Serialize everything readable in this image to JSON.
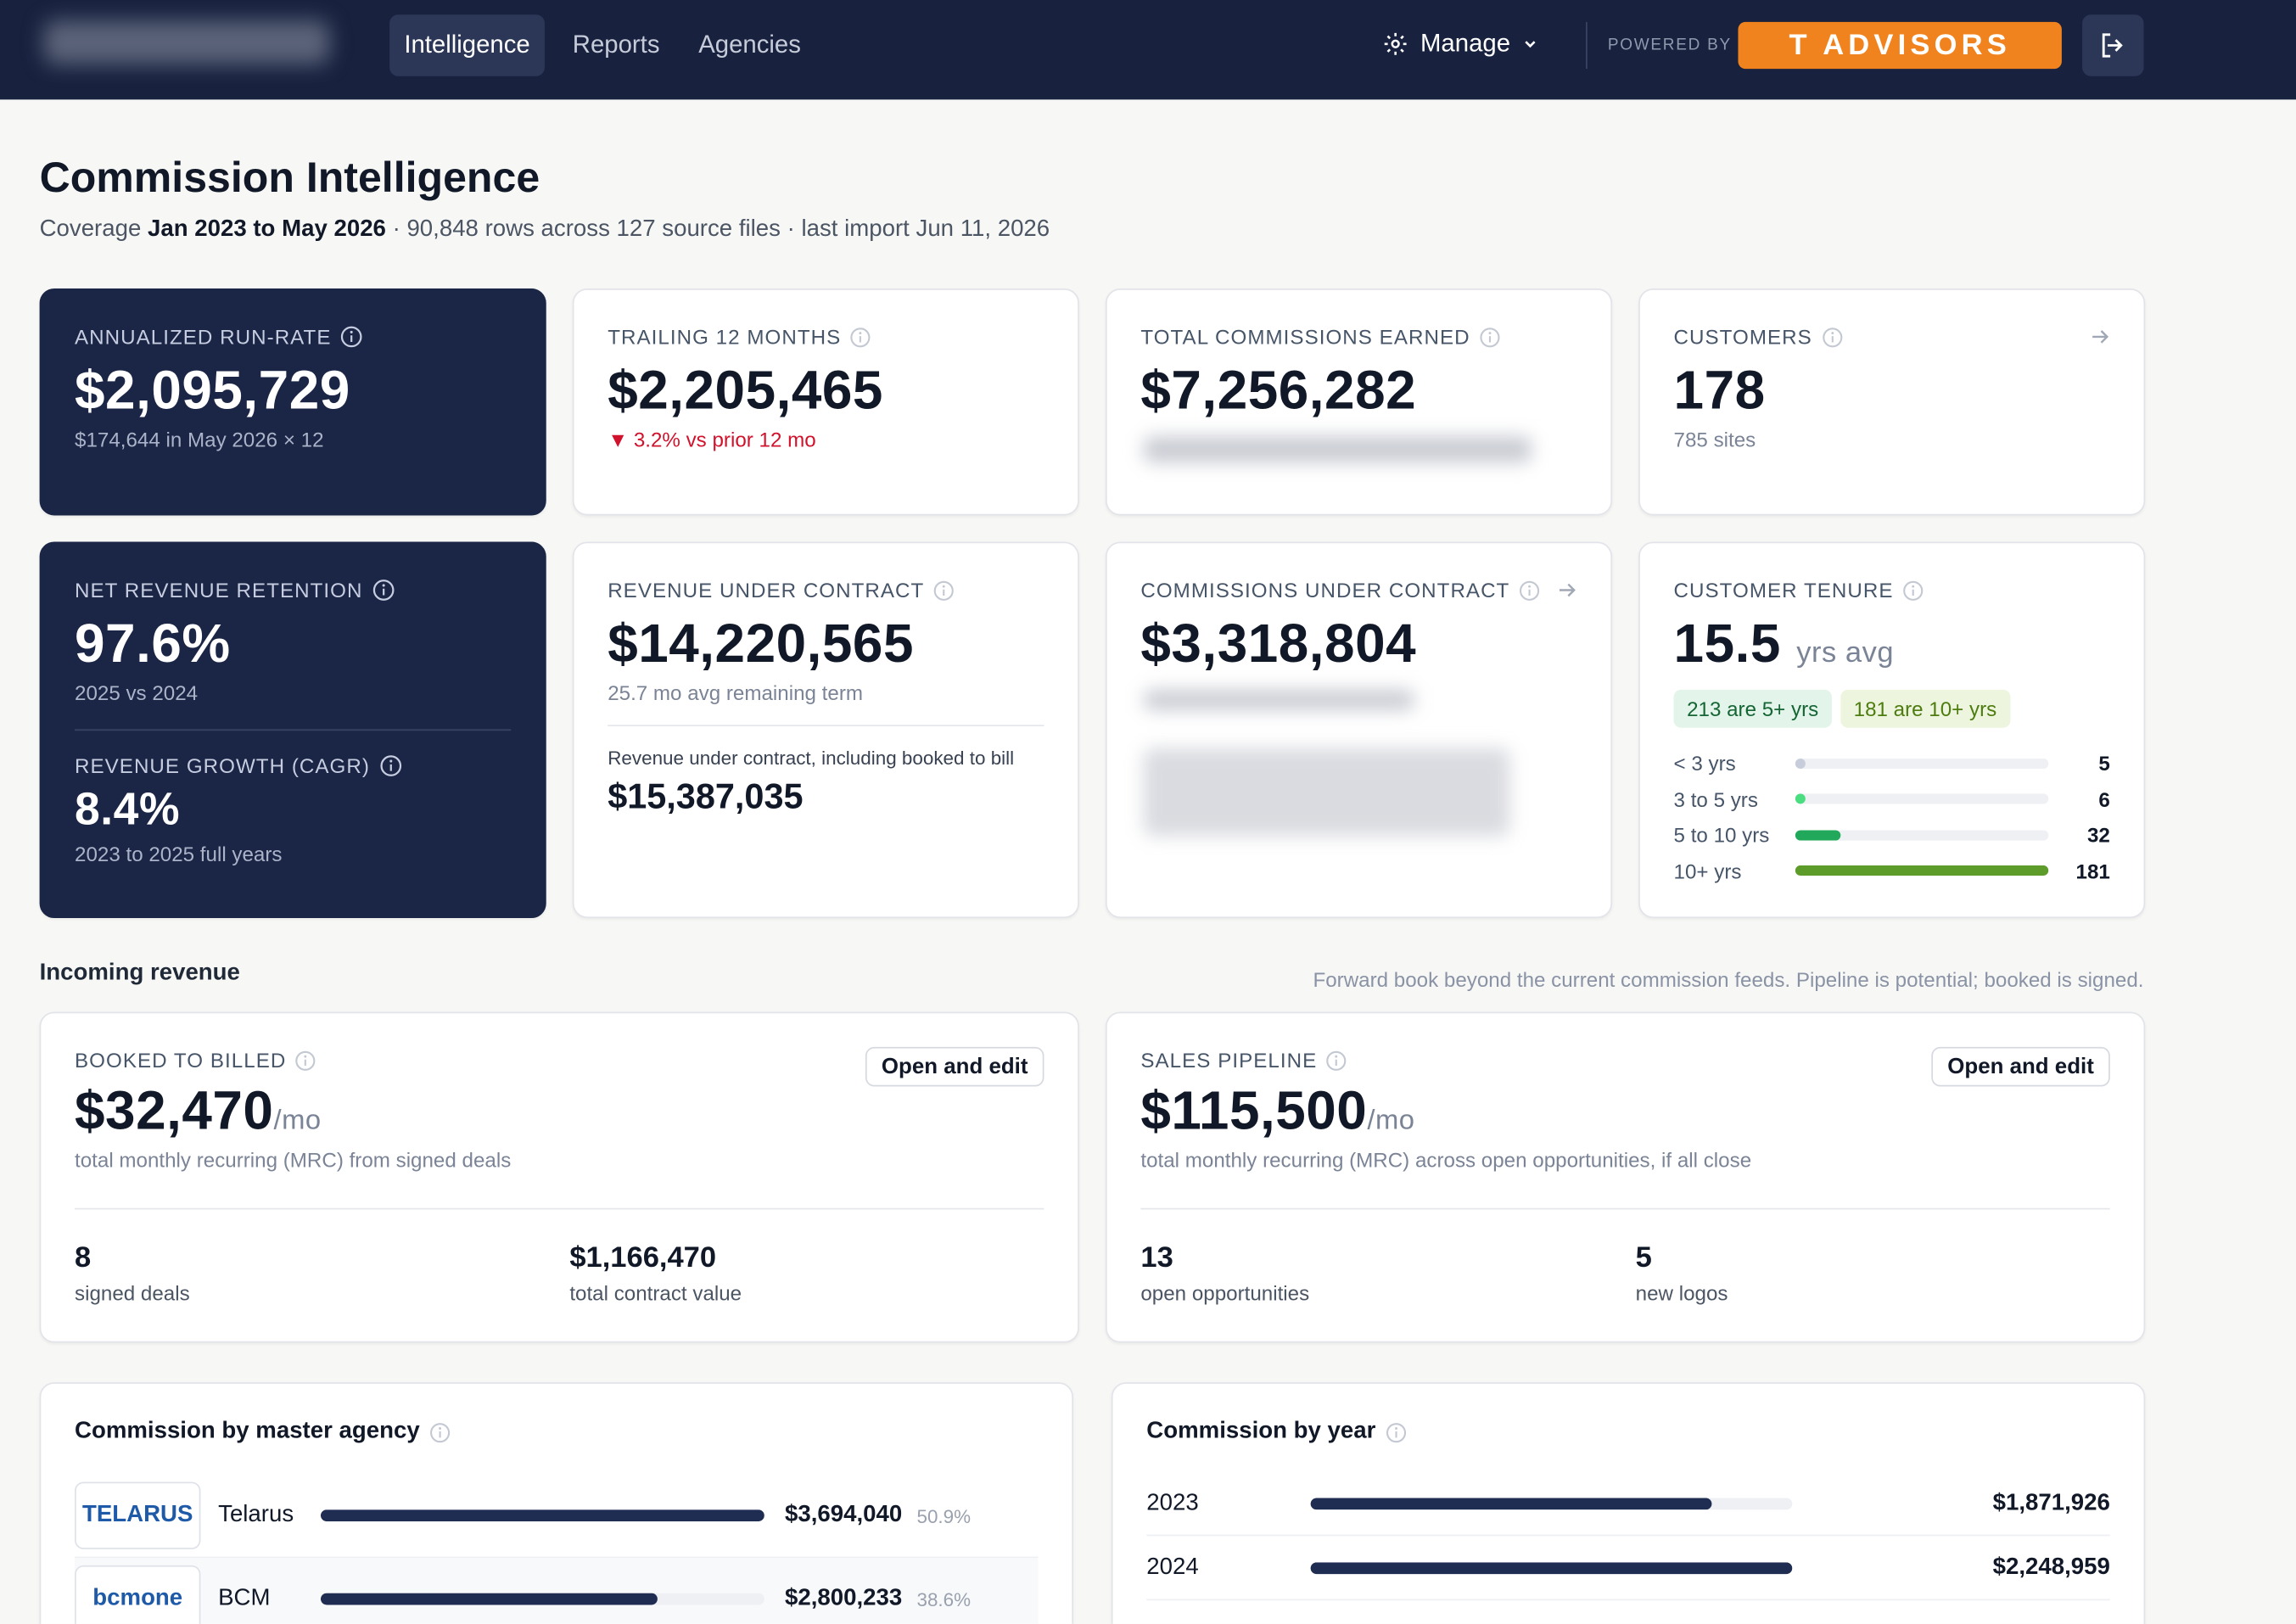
{
  "nav": {
    "tabs": [
      "Intelligence",
      "Reports",
      "Agencies"
    ],
    "manage": "Manage",
    "powered_by": "POWERED BY",
    "brand": "T ADVISORS"
  },
  "header": {
    "title": "Commission Intelligence",
    "coverage_label": "Coverage",
    "coverage_range": "Jan 2023 to May 2026",
    "details": "· 90,848 rows across 127 source files · last import Jun 11, 2026"
  },
  "kpis": [
    {
      "label": "ANNUALIZED RUN-RATE",
      "value": "$2,095,729",
      "note": "$174,644 in May 2026 × 12"
    },
    {
      "label": "TRAILING 12 MONTHS",
      "value": "$2,205,465",
      "note": "▼ 3.2% vs prior 12 mo"
    },
    {
      "label": "TOTAL COMMISSIONS EARNED",
      "value": "$7,256,282"
    },
    {
      "label": "CUSTOMERS",
      "value": "178",
      "note": "785 sites"
    },
    {
      "label": "NET REVENUE RETENTION",
      "value": "97.6%",
      "note": "2025 vs 2024",
      "label2": "REVENUE GROWTH (CAGR)",
      "value2": "8.4%",
      "note2": "2023 to 2025 full years"
    },
    {
      "label": "REVENUE UNDER CONTRACT",
      "value": "$14,220,565",
      "note": "25.7 mo avg remaining term",
      "sub_label": "Revenue under contract, including booked to bill",
      "sub_value": "$15,387,035"
    },
    {
      "label": "COMMISSIONS UNDER CONTRACT",
      "value": "$3,318,804"
    }
  ],
  "tenure": {
    "label": "CUSTOMER TENURE",
    "value": "15.5",
    "unit": "yrs avg",
    "badges": [
      "213 are 5+ yrs",
      "181 are 10+ yrs"
    ],
    "rows": [
      {
        "range": "< 3 yrs",
        "count": 5
      },
      {
        "range": "3 to 5 yrs",
        "count": 6
      },
      {
        "range": "5 to 10 yrs",
        "count": 32
      },
      {
        "range": "10+ yrs",
        "count": 181
      }
    ]
  },
  "incoming": {
    "title": "Incoming revenue",
    "note": "Forward book beyond the current commission feeds. Pipeline is potential; booked is signed.",
    "cards": [
      {
        "label": "BOOKED TO BILLED",
        "button": "Open and edit",
        "value": "$32,470",
        "unit": "/mo",
        "desc": "total monthly recurring (MRC) from signed deals",
        "stats": [
          {
            "value": "8",
            "label": "signed deals"
          },
          {
            "value": "$1,166,470",
            "label": "total contract value"
          }
        ]
      },
      {
        "label": "SALES PIPELINE",
        "button": "Open and edit",
        "value": "$115,500",
        "unit": "/mo",
        "desc": "total monthly recurring (MRC) across open opportunities, if all close",
        "stats": [
          {
            "value": "13",
            "label": "open opportunities"
          },
          {
            "value": "5",
            "label": "new logos"
          }
        ]
      }
    ]
  },
  "agencies": {
    "title": "Commission by master agency",
    "rows": [
      {
        "logo": "TELARUS",
        "name": "Telarus",
        "amount": "$3,694,040",
        "share": "50.9%"
      },
      {
        "logo": "bcmone",
        "name": "BCM",
        "amount": "$2,800,233",
        "share": "38.6%"
      }
    ]
  },
  "years": {
    "title": "Commission by year",
    "rows": [
      {
        "year": "2023",
        "amount": "$1,871,926"
      },
      {
        "year": "2024",
        "amount": "$2,248,959"
      }
    ]
  }
}
